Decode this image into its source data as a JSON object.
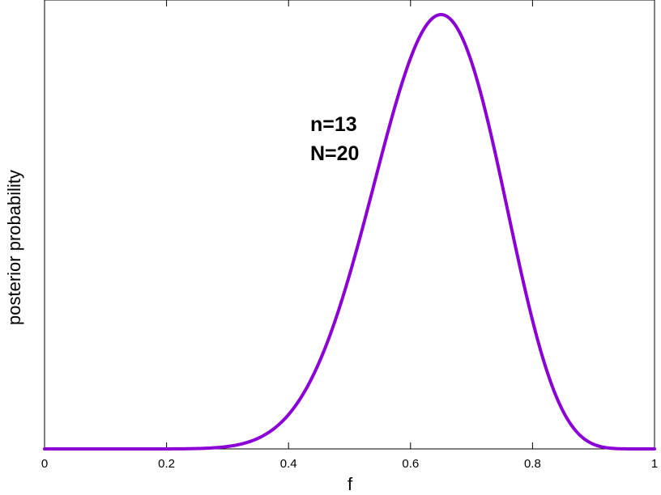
{
  "chart_data": {
    "type": "line",
    "title": "",
    "xlabel": "f",
    "ylabel": "posterior probability",
    "xlim": [
      0,
      1
    ],
    "ylim": [
      0,
      1
    ],
    "grid": false,
    "legend": "none",
    "x_ticks": [
      0,
      0.2,
      0.4,
      0.6,
      0.8,
      1
    ],
    "x_tick_labels": [
      "0",
      "0.2",
      "0.4",
      "0.6",
      "0.8",
      "1"
    ],
    "y_tick_labels": [],
    "annotations": [
      "n=13",
      "N=20"
    ],
    "series": [
      {
        "color": "#8b00d4",
        "distribution": "beta",
        "alpha": 14,
        "beta": 8,
        "peak_x": 0.65,
        "normalization": "peak_equals_1"
      }
    ]
  }
}
